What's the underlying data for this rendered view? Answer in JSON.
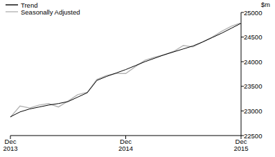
{
  "chart_data": {
    "type": "line",
    "y_label": "$m",
    "categories": [
      "Dec 2013",
      null,
      null,
      null,
      null,
      null,
      null,
      null,
      null,
      null,
      null,
      null,
      "Dec 2014",
      null,
      null,
      null,
      null,
      null,
      null,
      null,
      null,
      null,
      null,
      null,
      "Dec 2015"
    ],
    "series": [
      {
        "name": "Trend",
        "color": "#000000",
        "values": [
          22880,
          22980,
          23040,
          23080,
          23120,
          23150,
          23190,
          23280,
          23370,
          23620,
          23700,
          23770,
          23840,
          23920,
          24000,
          24070,
          24140,
          24200,
          24260,
          24320,
          24400,
          24490,
          24580,
          24680,
          24780
        ]
      },
      {
        "name": "Seasonally Adjusted",
        "color": "#b3b3b3",
        "values": [
          22870,
          23100,
          23060,
          23120,
          23150,
          23080,
          23200,
          23330,
          23380,
          23640,
          23720,
          23760,
          23760,
          23900,
          24030,
          24090,
          24140,
          24210,
          24330,
          24300,
          24400,
          24500,
          24620,
          24720,
          24790
        ]
      }
    ],
    "ylim": [
      22500,
      25000
    ],
    "yticks": [
      22500,
      23000,
      23500,
      24000,
      24500,
      25000
    ],
    "grid": false,
    "legend": "top-left"
  }
}
